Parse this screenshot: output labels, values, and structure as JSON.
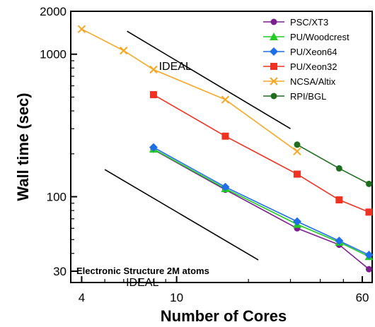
{
  "chart_data": {
    "type": "line",
    "x_scale": "log",
    "y_scale": "log",
    "xlabel": "Number of Cores",
    "ylabel": "Wall time (sec)",
    "xlim": [
      3.6,
      66
    ],
    "ylim": [
      25,
      2000
    ],
    "x_ticks": [
      4,
      10,
      60
    ],
    "x_tick_labels": [
      "4",
      "10",
      "60"
    ],
    "y_ticks": [
      30,
      100,
      1000,
      2000
    ],
    "y_tick_labels": [
      "30",
      "100",
      "1000",
      "2000"
    ],
    "grid": false,
    "legend_position": "top-right",
    "series": [
      {
        "name": "PSC/XT3",
        "color": "#7b1e8e",
        "marker": "circle",
        "x": [
          8,
          16,
          32,
          48,
          64
        ],
        "y": [
          214,
          112,
          60,
          46,
          31
        ]
      },
      {
        "name": "PU/Woodcrest",
        "color": "#22cc22",
        "marker": "triangle",
        "x": [
          8,
          16,
          32,
          48,
          64
        ],
        "y": [
          216,
          114,
          64,
          48,
          38
        ]
      },
      {
        "name": "PU/Xeon64",
        "color": "#1f6fe6",
        "marker": "diamond",
        "x": [
          8,
          16,
          32,
          48,
          64
        ],
        "y": [
          222,
          117,
          67,
          49,
          39
        ]
      },
      {
        "name": "PU/Xeon32",
        "color": "#ee3322",
        "marker": "square",
        "x": [
          8,
          16,
          32,
          48,
          64
        ],
        "y": [
          520,
          266,
          144,
          95,
          78
        ]
      },
      {
        "name": "NCSA/Altix",
        "color": "#f5a623",
        "marker": "x",
        "x": [
          4,
          6,
          8,
          16,
          32
        ],
        "y": [
          1500,
          1060,
          780,
          480,
          208
        ]
      },
      {
        "name": "RPI/BGL",
        "color": "#1e6e1e",
        "marker": "circle",
        "x": [
          32,
          48,
          64
        ],
        "y": [
          232,
          158,
          123
        ]
      }
    ],
    "ideal_lines": [
      {
        "label": "IDEAL",
        "x": [
          6.2,
          30
        ],
        "y": [
          1450,
          300
        ]
      },
      {
        "label": "IDEAL",
        "x": [
          5,
          22
        ],
        "y": [
          155,
          36
        ]
      }
    ],
    "annotation": "Electronic Structure 2M atoms"
  }
}
